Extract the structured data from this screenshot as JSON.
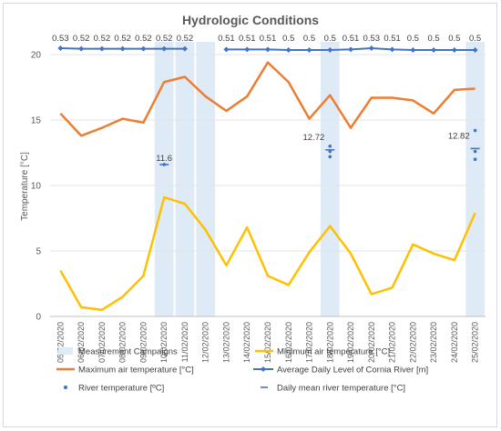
{
  "chart_data": {
    "type": "line",
    "title": "Hydrologic Conditions",
    "ylabel": "Temperature [°C]",
    "xlabel": "",
    "ylim": [
      0,
      20
    ],
    "yticks": [
      0,
      5,
      10,
      15,
      20
    ],
    "grid": true,
    "legend_position": "bottom",
    "categories": [
      "05/02/2020",
      "06/02/2020",
      "07/02/2020",
      "08/02/2020",
      "09/02/2020",
      "10/02/2020",
      "11/02/2020",
      "12/02/2020",
      "13/02/2020",
      "14/02/2020",
      "15/02/2020",
      "16/02/2020",
      "17/02/2020",
      "18/02/2020",
      "19/02/2020",
      "20/02/2020",
      "21/02/2020",
      "22/02/2020",
      "23/02/2020",
      "24/02/2020",
      "25/02/2020"
    ],
    "campaigns": {
      "name": "Measurement Campaigns",
      "color": "#deebf7",
      "dates": [
        "10/02/2020",
        "11/02/2020",
        "12/02/2020",
        "18/02/2020",
        "25/02/2020"
      ]
    },
    "series": [
      {
        "name": "Minimum air temperature [°C]",
        "color": "#ffc000",
        "values": [
          3.5,
          0.7,
          0.5,
          1.5,
          3.1,
          9.1,
          8.6,
          6.6,
          3.9,
          6.8,
          3.1,
          2.4,
          4.9,
          6.9,
          4.8,
          1.7,
          2.2,
          5.5,
          4.8,
          4.3,
          7.9
        ]
      },
      {
        "name": "Maximum air temperature [°C]",
        "color": "#ed7d31",
        "values": [
          15.5,
          13.8,
          14.4,
          15.1,
          14.8,
          17.9,
          18.3,
          16.8,
          15.7,
          16.8,
          19.4,
          17.9,
          15.1,
          16.9,
          14.4,
          16.7,
          16.7,
          16.5,
          15.5,
          17.3,
          17.4
        ]
      },
      {
        "name": "Average Daily Level of Cornia River [m]",
        "color": "#4472c4",
        "values": [
          0.53,
          0.52,
          0.52,
          0.52,
          0.52,
          0.52,
          0.52,
          null,
          0.51,
          0.51,
          0.51,
          0.5,
          0.5,
          0.5,
          0.51,
          0.53,
          0.51,
          0.5,
          0.5,
          0.5,
          0.5
        ],
        "labels": [
          "0.53",
          "0.52",
          "0.52",
          "0.52",
          "0.52",
          "0.52",
          "0.52",
          "",
          "0.51",
          "0.51",
          "0.51",
          "0.5",
          "0.5",
          "0.5",
          "0.51",
          "0.53",
          "0.51",
          "0.5",
          "0.5",
          "0.5",
          "0.5"
        ]
      }
    ],
    "river_temperature": {
      "name": "River temperature [ºC]",
      "color": "#4472c4",
      "points": [
        {
          "x": "10/02/2020",
          "values": [
            11.6
          ]
        },
        {
          "x": "18/02/2020",
          "values": [
            13.0,
            12.6,
            12.2
          ]
        },
        {
          "x": "25/02/2020",
          "values": [
            14.2,
            12.6,
            12.0
          ]
        }
      ]
    },
    "daily_mean_river_temperature": {
      "name": "Daily mean river temperature [°C]",
      "color": "#4472c4",
      "points": [
        {
          "x": "10/02/2020",
          "value": 11.6,
          "label": "11.6"
        },
        {
          "x": "18/02/2020",
          "value": 12.72,
          "label": "12.72"
        },
        {
          "x": "25/02/2020",
          "value": 12.82,
          "label": "12.82"
        }
      ]
    }
  }
}
